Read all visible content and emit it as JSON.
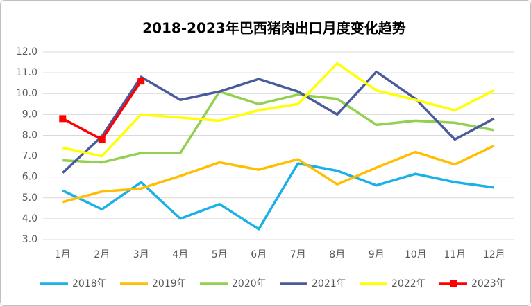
{
  "chart_data": {
    "type": "line",
    "title": "2018-2023年巴西猪肉出口月度变化趋势",
    "categories": [
      "1月",
      "2月",
      "3月",
      "4月",
      "5月",
      "6月",
      "7月",
      "8月",
      "9月",
      "10月",
      "11月",
      "12月"
    ],
    "series": [
      {
        "name": "2018年",
        "color": "#1ab0e8",
        "values": [
          5.35,
          4.45,
          5.75,
          4.0,
          4.7,
          3.5,
          6.65,
          6.3,
          5.6,
          6.15,
          5.75,
          5.5
        ]
      },
      {
        "name": "2019年",
        "color": "#ffbf00",
        "values": [
          4.8,
          5.3,
          5.45,
          6.05,
          6.7,
          6.35,
          6.85,
          5.65,
          6.45,
          7.2,
          6.6,
          7.5
        ]
      },
      {
        "name": "2020年",
        "color": "#92d050",
        "values": [
          6.8,
          6.7,
          7.15,
          7.15,
          10.1,
          9.5,
          9.95,
          9.75,
          8.5,
          8.7,
          8.6,
          8.25
        ]
      },
      {
        "name": "2021年",
        "color": "#4b5a9c",
        "values": [
          6.2,
          7.95,
          10.8,
          9.7,
          10.1,
          10.7,
          10.1,
          9.0,
          11.05,
          9.75,
          7.8,
          8.8
        ]
      },
      {
        "name": "2022年",
        "color": "#ffff00",
        "values": [
          7.4,
          7.0,
          9.0,
          8.85,
          8.7,
          9.2,
          9.5,
          11.45,
          10.15,
          9.7,
          9.2,
          10.15
        ]
      },
      {
        "name": "2023年",
        "color": "#ff0000",
        "marker": "square",
        "values": [
          8.8,
          7.8,
          10.6,
          null,
          null,
          null,
          null,
          null,
          null,
          null,
          null,
          null
        ]
      }
    ],
    "ylim": [
      3,
      12
    ],
    "yticks": [
      {
        "value": 3,
        "label": "3.0"
      },
      {
        "value": 4,
        "label": "4.0"
      },
      {
        "value": 5,
        "label": "5.0"
      },
      {
        "value": 6,
        "label": "6.0"
      },
      {
        "value": 7,
        "label": "7.0"
      },
      {
        "value": 8,
        "label": "8.0"
      },
      {
        "value": 9,
        "label": "9.0"
      },
      {
        "value": 10,
        "label": "10.0"
      },
      {
        "value": 11,
        "label": "11.0"
      },
      {
        "value": 12,
        "label": "12.0"
      }
    ],
    "grid": true,
    "legend": "bottom"
  }
}
